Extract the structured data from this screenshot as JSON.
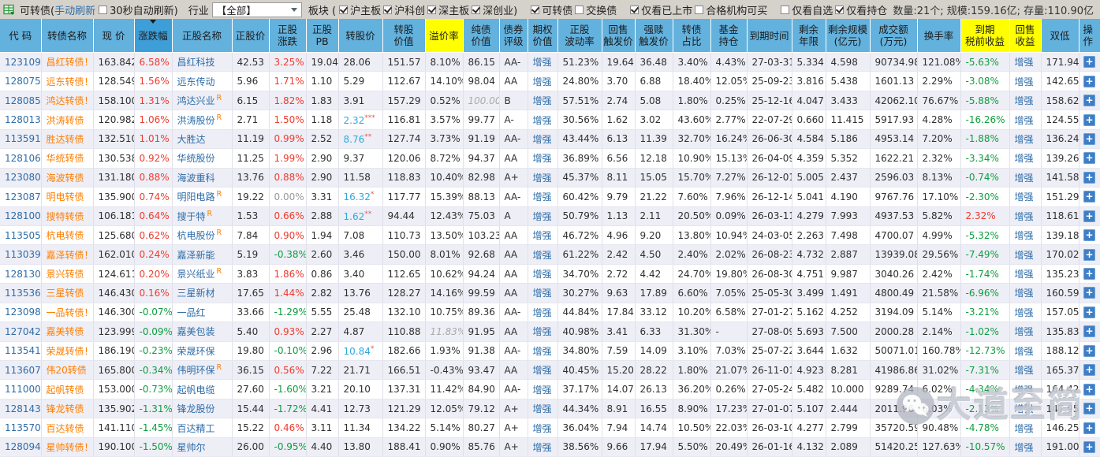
{
  "topbar": {
    "group_prefix": "可转债(",
    "manual_refresh": "手动刷新",
    "auto_refresh": {
      "label": "30秒自动刷新)",
      "checked": false
    },
    "industry_label": "行业",
    "industry_value": "【全部】",
    "sector_prefix": "板块 (",
    "filters": [
      {
        "label": "沪主板",
        "checked": true
      },
      {
        "label": "沪科创",
        "checked": true
      },
      {
        "label": "深主板",
        "checked": true
      },
      {
        "label": "深创业)",
        "checked": true
      },
      {
        "label": "可转债",
        "checked": true,
        "gap": true
      },
      {
        "label": "交换债",
        "checked": false
      },
      {
        "label": "仅看已上市",
        "checked": true,
        "gap": true
      },
      {
        "label": "合格机构可买",
        "checked": false
      },
      {
        "label": "仅看自选",
        "checked": false,
        "gap": true
      },
      {
        "label": "仅看持仓",
        "checked": true
      }
    ],
    "stats": "数量:21个;  规模:159.16亿;  存量:110.90亿"
  },
  "table": {
    "columns": [
      {
        "key": "code",
        "label": "代 码"
      },
      {
        "key": "name",
        "label": "转债名称"
      },
      {
        "key": "price",
        "label": "现 价"
      },
      {
        "key": "chg",
        "label": "涨跌幅",
        "sorted": "desc"
      },
      {
        "key": "stock",
        "label": "正股名称"
      },
      {
        "key": "stock_price",
        "label": "正股价"
      },
      {
        "key": "stock_chg",
        "label": "正股\n涨跌"
      },
      {
        "key": "pb",
        "label": "正股\nPB"
      },
      {
        "key": "conv_price",
        "label": "转股价"
      },
      {
        "key": "conv_value",
        "label": "转股\n价值"
      },
      {
        "key": "premium",
        "label": "溢价率",
        "hl": true
      },
      {
        "key": "bond_value",
        "label": "纯债\n价值"
      },
      {
        "key": "rating",
        "label": "债券\n评级"
      },
      {
        "key": "option",
        "label": "期权\n价值"
      },
      {
        "key": "volatility",
        "label": "正股\n波动率"
      },
      {
        "key": "put_trigger",
        "label": "回售\n触发价"
      },
      {
        "key": "call_trigger",
        "label": "强赎\n触发价"
      },
      {
        "key": "ratio",
        "label": "转债\n占比"
      },
      {
        "key": "fund",
        "label": "基金\n持仓"
      },
      {
        "key": "maturity",
        "label": "到期时间"
      },
      {
        "key": "years",
        "label": "剩余\n年限"
      },
      {
        "key": "size",
        "label": "剩余规模\n(亿元)"
      },
      {
        "key": "turnover",
        "label": "成交额\n(万元)"
      },
      {
        "key": "turnover_rate",
        "label": "换手率"
      },
      {
        "key": "ytm",
        "label": "到期\n税前收益",
        "hl": true
      },
      {
        "key": "put_yield",
        "label": "回售\n收益",
        "hl": true
      },
      {
        "key": "double_low",
        "label": "双低"
      },
      {
        "key": "action",
        "label": "操作"
      }
    ],
    "rows": [
      [
        "123109",
        "昌红转债！",
        "163.842",
        "6.58%",
        "昌红科技",
        "42.53",
        "3.25%",
        "19.04",
        "28.06",
        "151.57",
        "8.10%",
        "86.15",
        "AA-",
        "增强",
        "51.23%",
        "19.64",
        "36.48",
        "3.40%",
        "4.43%",
        "27-03-31",
        "5.334",
        "4.598",
        "90734.98",
        "121.08%",
        "-5.63%",
        "增强",
        "171.94",
        "+"
      ],
      [
        "128075",
        "远东转债！",
        "128.549",
        "1.56%",
        "远东传动",
        "5.96",
        "1.71%",
        "1.10",
        "5.29",
        "112.67",
        "14.10%",
        "98.04",
        "AA",
        "增强",
        "24.80%",
        "3.70",
        "6.88",
        "18.40%",
        "12.05%",
        "25-09-23",
        "3.816",
        "5.438",
        "1601.13",
        "2.29%",
        "-3.08%",
        "增强",
        "142.65",
        "+"
      ],
      [
        "128085",
        "鸿达转债！",
        "158.100",
        "1.31%",
        "鸿达兴业",
        "6.15",
        "1.82%",
        "1.83",
        "3.91",
        "157.29",
        "0.52%",
        "100.00",
        "B",
        "增强",
        "57.51%",
        "2.74",
        "5.08",
        "1.80%",
        "0.25%",
        "25-12-16",
        "4.047",
        "3.433",
        "42062.10",
        "76.67%",
        "-5.88%",
        "增强",
        "158.62",
        "+"
      ],
      [
        "128013",
        "洪涛转债",
        "120.982",
        "1.06%",
        "洪涛股份",
        "2.71",
        "1.50%",
        "1.18",
        "2.32",
        "116.81",
        "3.57%",
        "99.77",
        "A-",
        "增强",
        "30.56%",
        "1.62",
        "3.02",
        "43.60%",
        "2.77%",
        "22-07-29",
        "0.660",
        "11.415",
        "5917.93",
        "4.28%",
        "-16.26%",
        "增强",
        "124.55",
        "+"
      ],
      [
        "113591",
        "胜达转债",
        "132.510",
        "1.01%",
        "大胜达",
        "11.19",
        "0.99%",
        "2.52",
        "8.76",
        "127.74",
        "3.73%",
        "91.19",
        "AA-",
        "增强",
        "43.44%",
        "6.13",
        "11.39",
        "32.70%",
        "16.24%",
        "26-06-30",
        "4.584",
        "5.186",
        "4953.14",
        "7.20%",
        "-1.88%",
        "增强",
        "136.24",
        "+"
      ],
      [
        "128106",
        "华统转债",
        "130.538",
        "0.92%",
        "华统股份",
        "11.25",
        "1.99%",
        "2.90",
        "9.37",
        "120.06",
        "8.72%",
        "94.37",
        "AA",
        "增强",
        "36.89%",
        "6.56",
        "12.18",
        "10.90%",
        "15.13%",
        "26-04-09",
        "4.359",
        "5.352",
        "1622.21",
        "2.32%",
        "-3.34%",
        "增强",
        "139.26",
        "+"
      ],
      [
        "123080",
        "海波转债",
        "131.180",
        "0.88%",
        "海波重科",
        "13.76",
        "0.88%",
        "2.90",
        "11.58",
        "118.83",
        "10.40%",
        "82.98",
        "A+",
        "增强",
        "45.37%",
        "8.11",
        "15.05",
        "15.70%",
        "7.27%",
        "26-12-01",
        "5.005",
        "2.437",
        "2596.03",
        "8.13%",
        "-0.74%",
        "增强",
        "141.58",
        "+"
      ],
      [
        "123087",
        "明电转债",
        "135.900",
        "0.74%",
        "明阳电路",
        "19.22",
        "0.00%",
        "3.31",
        "16.32",
        "117.77",
        "15.39%",
        "88.13",
        "AA-",
        "增强",
        "60.42%",
        "9.79",
        "21.22",
        "7.60%",
        "7.96%",
        "26-12-14",
        "5.041",
        "4.190",
        "9767.76",
        "17.10%",
        "-2.30%",
        "增强",
        "151.29",
        "+"
      ],
      [
        "128100",
        "搜特转债",
        "106.181",
        "0.64%",
        "搜于特",
        "1.53",
        "0.66%",
        "2.88",
        "1.62",
        "94.44",
        "12.43%",
        "75.03",
        "A",
        "增强",
        "50.79%",
        "1.13",
        "2.11",
        "20.50%",
        "0.09%",
        "26-03-11",
        "4.279",
        "7.993",
        "4937.53",
        "5.82%",
        "2.32%",
        "增强",
        "118.61",
        "+"
      ],
      [
        "113505",
        "杭电转债",
        "125.680",
        "0.62%",
        "杭电股份",
        "7.84",
        "0.90%",
        "1.94",
        "7.08",
        "110.73",
        "13.50%",
        "103.23",
        "AA",
        "增强",
        "46.72%",
        "4.96",
        "9.20",
        "13.80%",
        "10.94%",
        "24-03-05",
        "2.263",
        "7.498",
        "4700.07",
        "4.99%",
        "-5.32%",
        "增强",
        "139.18",
        "+"
      ],
      [
        "113039",
        "嘉泽转债！",
        "162.010",
        "0.24%",
        "嘉泽新能",
        "5.19",
        "-0.38%",
        "2.60",
        "3.46",
        "150.00",
        "8.01%",
        "92.68",
        "AA",
        "增强",
        "61.22%",
        "2.42",
        "4.50",
        "2.40%",
        "2.02%",
        "26-08-23",
        "4.732",
        "2.887",
        "13939.08",
        "29.56%",
        "-7.49%",
        "增强",
        "170.02",
        "+"
      ],
      [
        "128130",
        "景兴转债",
        "124.611",
        "0.20%",
        "景兴纸业",
        "3.83",
        "1.86%",
        "0.86",
        "3.40",
        "112.65",
        "10.62%",
        "94.24",
        "AA",
        "增强",
        "34.70%",
        "2.72",
        "4.42",
        "24.70%",
        "19.80%",
        "26-08-30",
        "4.751",
        "9.987",
        "3040.26",
        "2.42%",
        "-1.74%",
        "增强",
        "135.23",
        "+"
      ],
      [
        "113536",
        "三星转债",
        "146.430",
        "0.16%",
        "三星新材",
        "17.65",
        "1.44%",
        "2.82",
        "13.76",
        "128.27",
        "14.16%",
        "99.59",
        "AA",
        "增强",
        "30.27%",
        "9.63",
        "17.89",
        "6.60%",
        "7.05%",
        "25-05-30",
        "3.499",
        "1.491",
        "4800.49",
        "21.58%",
        "-6.96%",
        "增强",
        "160.59",
        "+"
      ],
      [
        "123098",
        "一品转债！",
        "146.300",
        "-0.07%",
        "一品红",
        "33.66",
        "-1.29%",
        "5.55",
        "25.48",
        "132.10",
        "10.75%",
        "89.36",
        "AA-",
        "增强",
        "44.84%",
        "17.84",
        "33.12",
        "10.20%",
        "6.58%",
        "27-01-27",
        "5.162",
        "4.252",
        "3194.09",
        "5.14%",
        "-3.21%",
        "增强",
        "157.05",
        "+"
      ],
      [
        "127042",
        "嘉美转债",
        "123.999",
        "-0.09%",
        "嘉美包装",
        "5.40",
        "0.93%",
        "2.27",
        "4.87",
        "110.88",
        "11.83%",
        "91.95",
        "AA",
        "增强",
        "40.98%",
        "3.41",
        "6.33",
        "31.30%",
        "-",
        "27-08-09",
        "5.693",
        "7.500",
        "2000.28",
        "2.14%",
        "-1.02%",
        "增强",
        "135.83",
        "+"
      ],
      [
        "113541",
        "荣晟转债！",
        "186.190",
        "-0.23%",
        "荣晟环保",
        "19.80",
        "-0.10%",
        "2.96",
        "10.84",
        "182.66",
        "1.93%",
        "91.38",
        "AA-",
        "增强",
        "34.80%",
        "7.59",
        "14.09",
        "3.10%",
        "7.03%",
        "25-07-22",
        "3.644",
        "1.632",
        "50071.01",
        "160.78%",
        "-12.73%",
        "增强",
        "188.12",
        "+"
      ],
      [
        "113607",
        "伟20转债",
        "165.800",
        "-0.34%",
        "伟明环保",
        "36.15",
        "0.56%",
        "7.22",
        "21.71",
        "166.51",
        "-0.43%",
        "93.47",
        "AA",
        "增强",
        "40.45%",
        "15.20",
        "28.22",
        "1.80%",
        "21.07%",
        "26-11-01",
        "4.923",
        "8.281",
        "41986.86",
        "31.02%",
        "-7.31%",
        "增强",
        "165.37",
        "+"
      ],
      [
        "111000",
        "起帆转债",
        "153.000",
        "-0.73%",
        "起帆电缆",
        "27.60",
        "-1.60%",
        "3.21",
        "20.10",
        "137.31",
        "11.42%",
        "84.90",
        "AA-",
        "增强",
        "37.17%",
        "14.07",
        "26.13",
        "36.20%",
        "0.26%",
        "27-05-24",
        "5.482",
        "10.000",
        "9289.74",
        "6.02%",
        "-4.34%",
        "增强",
        "164.42",
        "+"
      ],
      [
        "128143",
        "锋龙转债",
        "135.902",
        "-1.31%",
        "锋龙股份",
        "15.44",
        "-1.72%",
        "4.41",
        "12.73",
        "121.29",
        "12.05%",
        "79.12",
        "A+",
        "增强",
        "44.34%",
        "8.91",
        "16.55",
        "8.90%",
        "17.23%",
        "27-01-07",
        "5.107",
        "2.444",
        "2011.96",
        "6.03%",
        "-2.13%",
        "增强",
        "147.95",
        "+"
      ],
      [
        "113570",
        "百达转债",
        "141.110",
        "-1.45%",
        "百达精工",
        "15.22",
        "0.46%",
        "3.11",
        "11.34",
        "134.22",
        "5.14%",
        "80.27",
        "A+",
        "增强",
        "36.04%",
        "7.94",
        "14.74",
        "10.50%",
        "22.03%",
        "26-03-10",
        "4.277",
        "2.799",
        "35720.59",
        "90.48%",
        "-4.78%",
        "增强",
        "146.25",
        "+"
      ],
      [
        "128094",
        "星帅转债！",
        "190.100",
        "-1.50%",
        "星帅尔",
        "26.00",
        "-0.95%",
        "4.40",
        "13.80",
        "188.41",
        "0.90%",
        "85.76",
        "A+",
        "增强",
        "38.56%",
        "9.66",
        "17.94",
        "5.50%",
        "20.49%",
        "26-01-16",
        "4.132",
        "2.089",
        "51420.25",
        "127.63%",
        "-10.57%",
        "增强",
        "191.00",
        "+"
      ]
    ],
    "stock_r_rows": [
      2,
      3,
      7,
      8,
      9,
      11,
      16
    ],
    "conv_notes": {
      "3": "***",
      "4": "**",
      "7": "*",
      "8": "**",
      "15": "*"
    },
    "estimated": {
      "2": "bond_value",
      "14": "premium"
    }
  },
  "watermark": {
    "text": "大道至简"
  }
}
